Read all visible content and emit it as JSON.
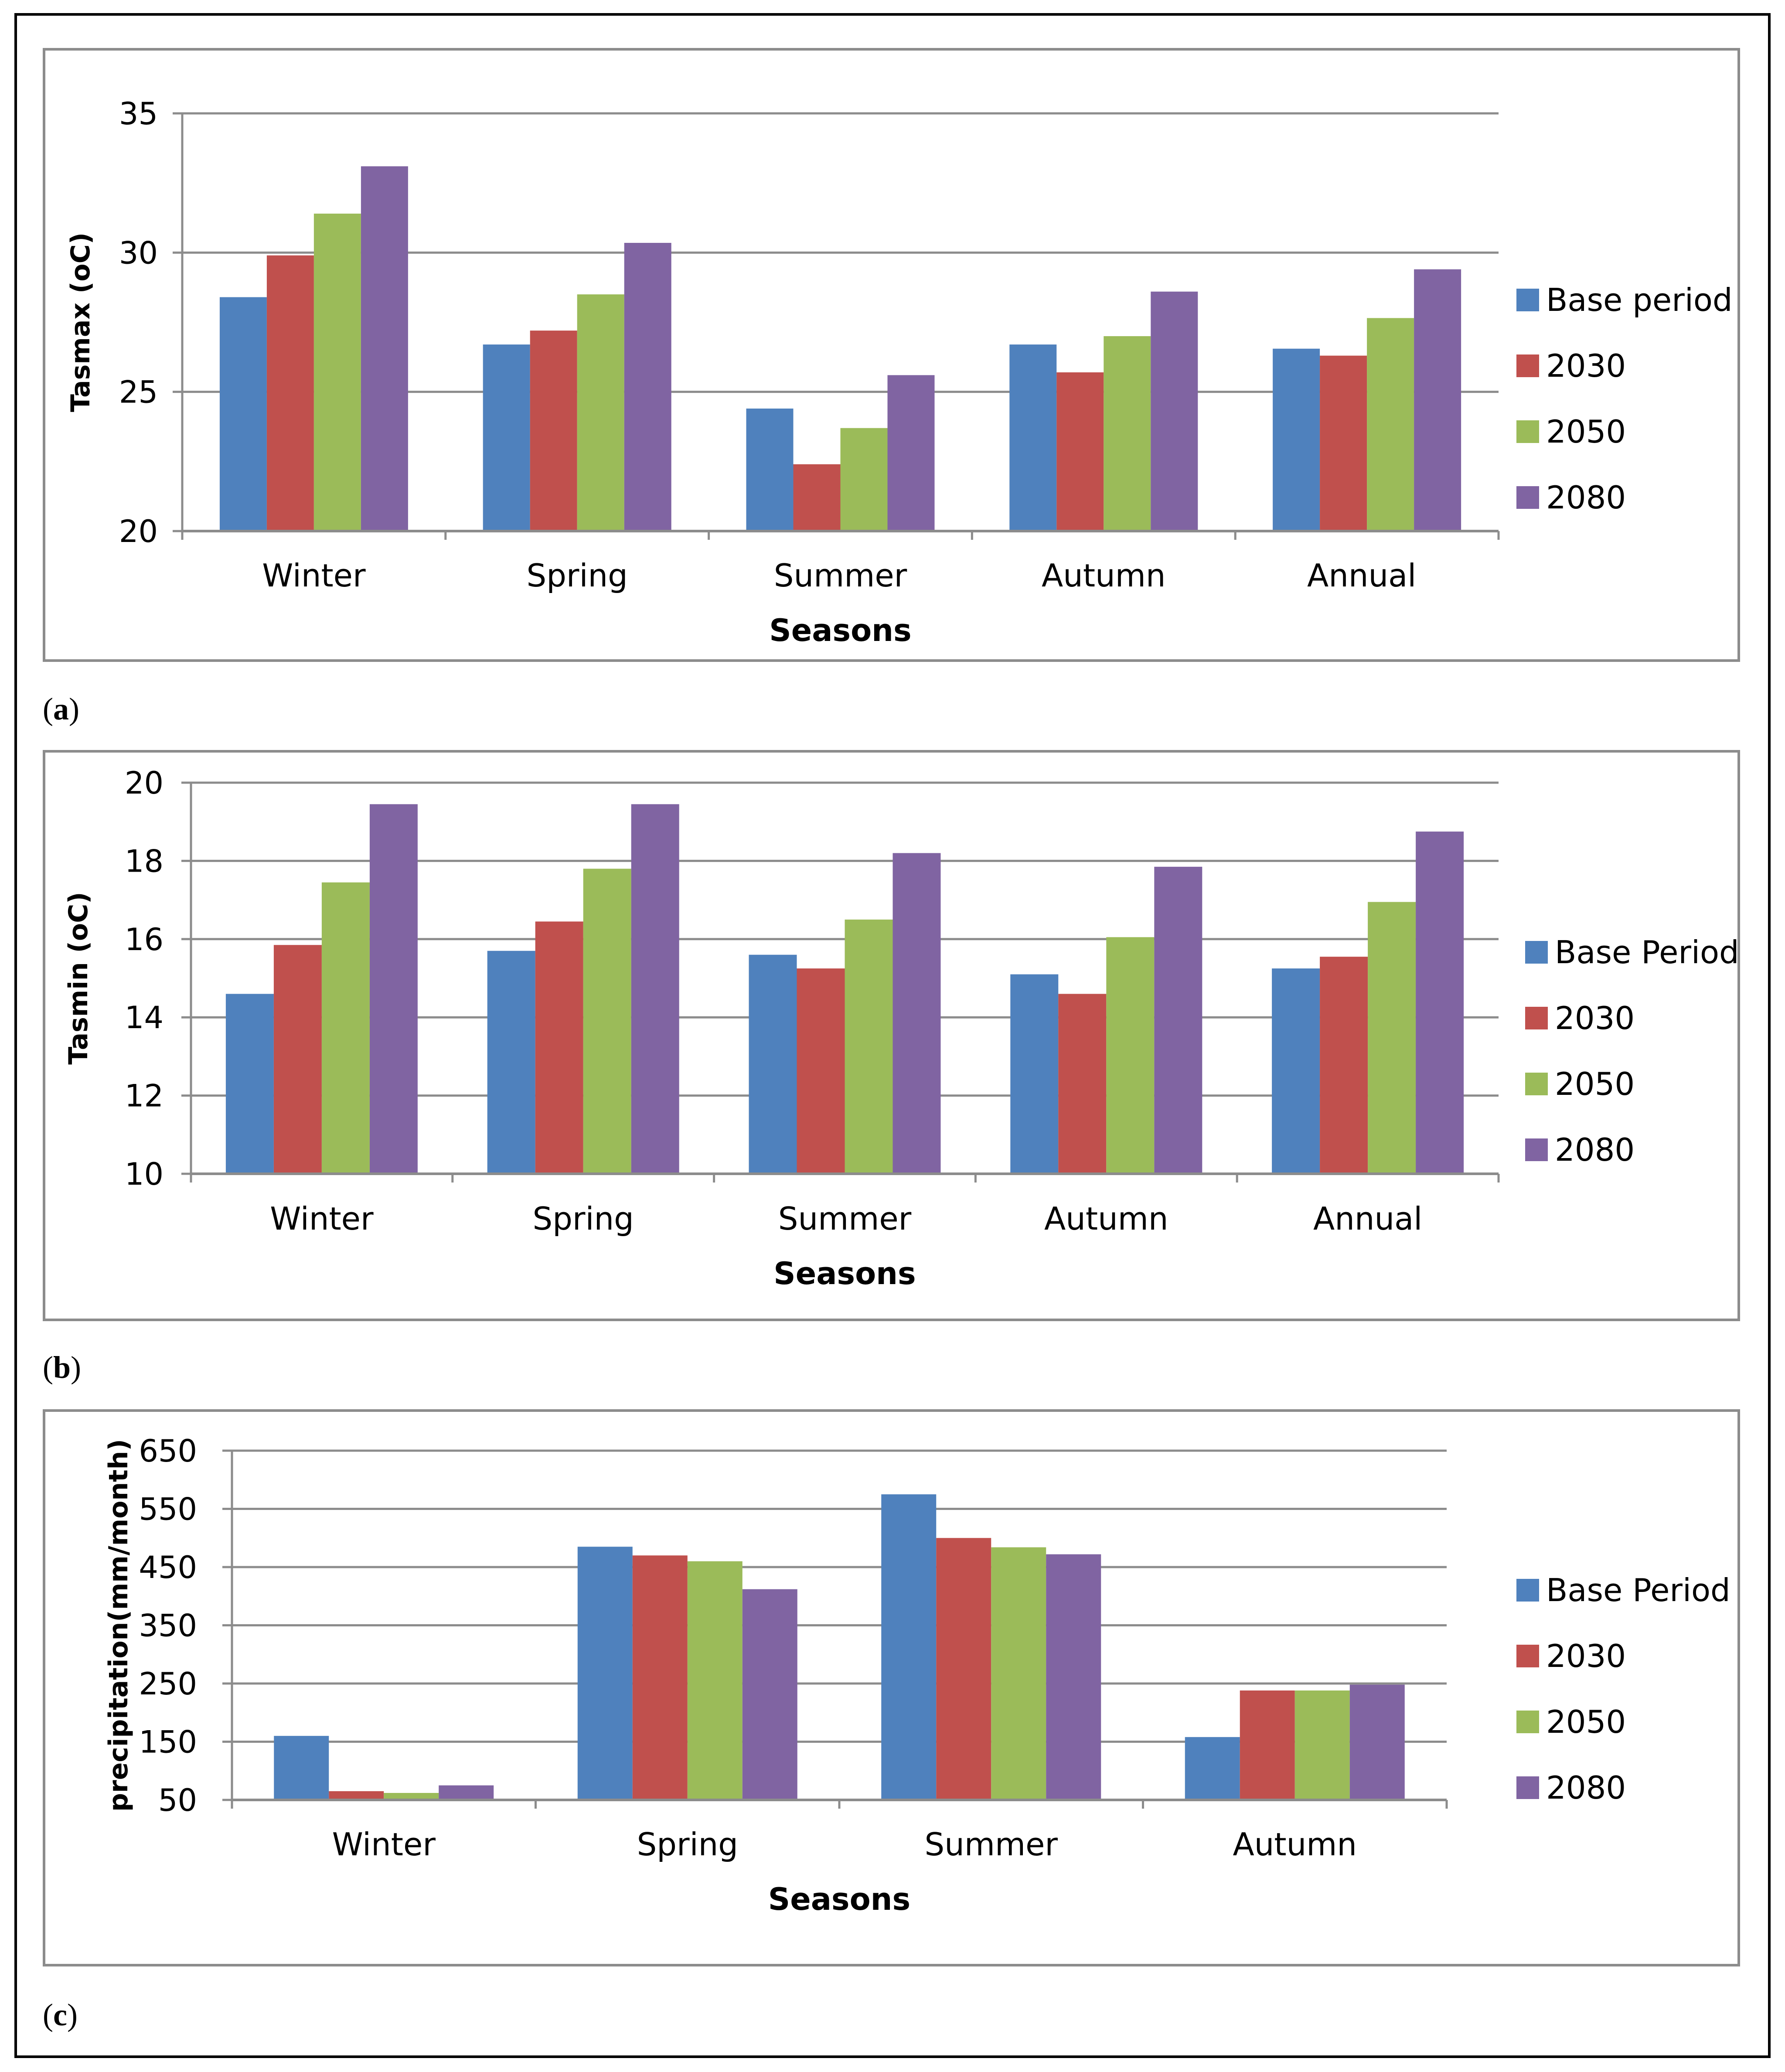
{
  "panels": [
    {
      "label_letter": "a"
    },
    {
      "label_letter": "b"
    },
    {
      "label_letter": "c"
    }
  ],
  "chart_data": [
    {
      "type": "bar",
      "categories": [
        "Winter",
        "Spring",
        "Summer",
        "Autumn",
        "Annual"
      ],
      "series": [
        {
          "name": "Base period",
          "values": [
            28.4,
            26.7,
            24.4,
            26.7,
            26.55
          ]
        },
        {
          "name": "2030",
          "values": [
            29.9,
            27.2,
            22.4,
            25.7,
            26.3
          ]
        },
        {
          "name": "2050",
          "values": [
            31.4,
            28.5,
            23.7,
            27.0,
            27.65
          ]
        },
        {
          "name": "2080",
          "values": [
            33.1,
            30.35,
            25.6,
            28.6,
            29.4
          ]
        }
      ],
      "xlabel": "Seasons",
      "ylabel": "Tasmax (oC)",
      "ylim": [
        20,
        35
      ],
      "yticks": [
        20,
        25,
        30,
        35
      ],
      "grid": true,
      "legend": "right",
      "colors": [
        "#4f81bd",
        "#c0504d",
        "#9bbb59",
        "#8064a2"
      ]
    },
    {
      "type": "bar",
      "categories": [
        "Winter",
        "Spring",
        "Summer",
        "Autumn",
        "Annual"
      ],
      "series": [
        {
          "name": "Base Period",
          "values": [
            14.6,
            15.7,
            15.6,
            15.1,
            15.25
          ]
        },
        {
          "name": "2030",
          "values": [
            15.85,
            16.45,
            15.25,
            14.6,
            15.55
          ]
        },
        {
          "name": "2050",
          "values": [
            17.45,
            17.8,
            16.5,
            16.05,
            16.95
          ]
        },
        {
          "name": "2080",
          "values": [
            19.45,
            19.45,
            18.2,
            17.85,
            18.75
          ]
        }
      ],
      "xlabel": "Seasons",
      "ylabel": "Tasmin (oC)",
      "ylim": [
        10,
        20
      ],
      "yticks": [
        10,
        12,
        14,
        16,
        18,
        20
      ],
      "grid": true,
      "legend": "right",
      "colors": [
        "#4f81bd",
        "#c0504d",
        "#9bbb59",
        "#8064a2"
      ]
    },
    {
      "type": "bar",
      "categories": [
        "Winter",
        "Spring",
        "Summer",
        "Autumn"
      ],
      "series": [
        {
          "name": "Base Period",
          "values": [
            160,
            485,
            575,
            158
          ]
        },
        {
          "name": "2030",
          "values": [
            65,
            470,
            500,
            238
          ]
        },
        {
          "name": "2050",
          "values": [
            62,
            460,
            484,
            238
          ]
        },
        {
          "name": "2080",
          "values": [
            75,
            412,
            472,
            248
          ]
        }
      ],
      "xlabel": "Seasons",
      "ylabel": "precipitation(mm/month)",
      "ylim": [
        50,
        650
      ],
      "yticks": [
        50,
        150,
        250,
        350,
        450,
        550,
        650
      ],
      "grid": true,
      "legend": "right",
      "colors": [
        "#4f81bd",
        "#c0504d",
        "#9bbb59",
        "#8064a2"
      ]
    }
  ]
}
